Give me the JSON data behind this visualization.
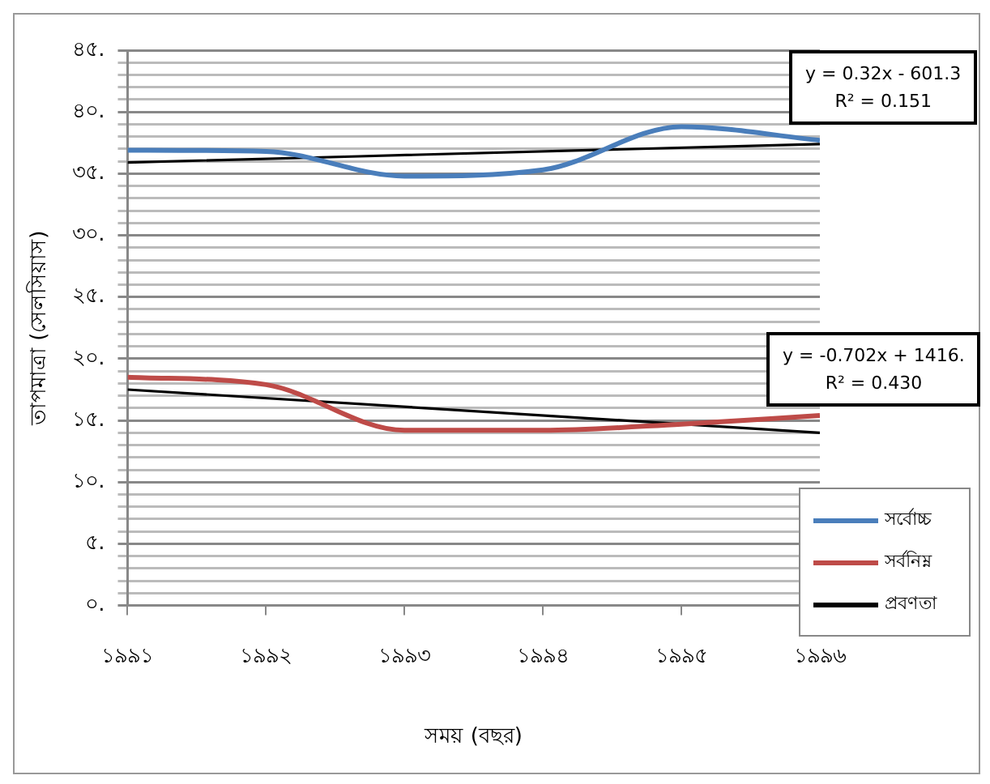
{
  "chart_data": {
    "type": "line",
    "xlabel": "সময় (বছর)",
    "ylabel": "তাপমাত্রা (সেলসিয়াস)",
    "series": [
      {
        "type": "line",
        "name": "সর্বোচ্চ",
        "color": "#4a7ebb",
        "x": [
          1991,
          1992,
          1993,
          1994,
          1995,
          1996
        ],
        "values": [
          36.9,
          36.8,
          34.8,
          35.3,
          38.8,
          37.7
        ]
      },
      {
        "type": "line",
        "name": "সর্বনিম্ন",
        "color": "#be4b48",
        "x": [
          1991,
          1992,
          1993,
          1994,
          1995,
          1996
        ],
        "values": [
          18.5,
          17.9,
          14.2,
          14.2,
          14.7,
          15.4
        ]
      },
      {
        "type": "line",
        "name": "প্রবণতা",
        "color": "#000000",
        "x": [
          1991,
          1996
        ],
        "values": [
          35.9,
          37.4
        ]
      },
      {
        "type": "line",
        "color": "#000000",
        "x": [
          1991,
          1996
        ],
        "values": [
          17.5,
          14.0
        ]
      }
    ],
    "xlim": [
      1991,
      1996
    ],
    "xticks": [
      {
        "value": 1991,
        "label": "১৯৯১"
      },
      {
        "value": 1992,
        "label": "১৯৯২"
      },
      {
        "value": 1993,
        "label": "১৯৯৩"
      },
      {
        "value": 1994,
        "label": "১৯৯৪"
      },
      {
        "value": 1995,
        "label": "১৯৯৫"
      },
      {
        "value": 1996,
        "label": "১৯৯৬"
      }
    ],
    "ylim": [
      0,
      45
    ],
    "yticks": [
      {
        "value": 0,
        "label": "০."
      },
      {
        "value": 1,
        "label": null
      },
      {
        "value": 2,
        "label": null
      },
      {
        "value": 3,
        "label": null
      },
      {
        "value": 4,
        "label": null
      },
      {
        "value": 5,
        "label": "৫."
      },
      {
        "value": 6,
        "label": null
      },
      {
        "value": 7,
        "label": null
      },
      {
        "value": 8,
        "label": null
      },
      {
        "value": 9,
        "label": null
      },
      {
        "value": 10,
        "label": "১০."
      },
      {
        "value": 11,
        "label": null
      },
      {
        "value": 12,
        "label": null
      },
      {
        "value": 13,
        "label": null
      },
      {
        "value": 14,
        "label": null
      },
      {
        "value": 15,
        "label": "১৫."
      },
      {
        "value": 16,
        "label": null
      },
      {
        "value": 17,
        "label": null
      },
      {
        "value": 18,
        "label": null
      },
      {
        "value": 19,
        "label": null
      },
      {
        "value": 20,
        "label": "২০."
      },
      {
        "value": 21,
        "label": null
      },
      {
        "value": 22,
        "label": null
      },
      {
        "value": 23,
        "label": null
      },
      {
        "value": 24,
        "label": null
      },
      {
        "value": 25,
        "label": "২৫."
      },
      {
        "value": 26,
        "label": null
      },
      {
        "value": 27,
        "label": null
      },
      {
        "value": 28,
        "label": null
      },
      {
        "value": 29,
        "label": null
      },
      {
        "value": 30,
        "label": "৩০."
      },
      {
        "value": 31,
        "label": null
      },
      {
        "value": 32,
        "label": null
      },
      {
        "value": 33,
        "label": null
      },
      {
        "value": 34,
        "label": null
      },
      {
        "value": 35,
        "label": "৩৫."
      },
      {
        "value": 36,
        "label": null
      },
      {
        "value": 37,
        "label": null
      },
      {
        "value": 38,
        "label": null
      },
      {
        "value": 39,
        "label": null
      },
      {
        "value": 40,
        "label": "৪০."
      },
      {
        "value": 41,
        "label": null
      },
      {
        "value": 42,
        "label": null
      },
      {
        "value": 43,
        "label": null
      },
      {
        "value": 44,
        "label": null
      },
      {
        "value": 45,
        "label": "৪৫."
      }
    ],
    "annotations": [
      "y = 0.32x - 601.3",
      "R² = 0.151",
      "y = -0.702x + 1416.",
      "R² = 0.430"
    ],
    "grid": "y",
    "legend": "bottom right",
    "marker": "none",
    "line_style": "solid"
  }
}
